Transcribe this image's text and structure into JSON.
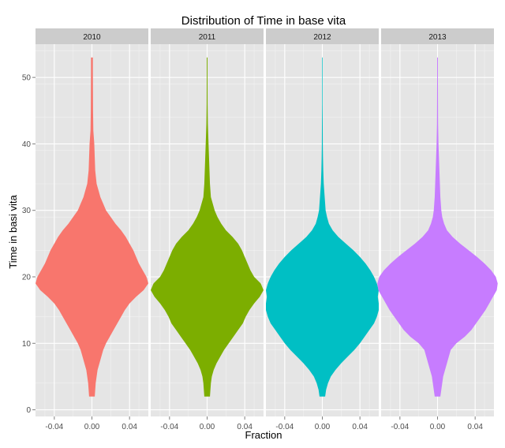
{
  "chart_data": {
    "type": "violin",
    "title": "Distribution of Time in base vita",
    "xlabel": "Fraction",
    "ylabel": "Time in basi vita",
    "ylim": [
      -1,
      55
    ],
    "xlim": [
      -0.06,
      0.06
    ],
    "y_ticks": [
      0,
      10,
      20,
      30,
      40,
      50
    ],
    "x_ticks": [
      -0.04,
      0.0,
      0.04
    ],
    "x_tick_labels": [
      "-0.04",
      "0.00",
      "0.04"
    ],
    "grid": true,
    "legend": "none",
    "panels": [
      {
        "name": "2010",
        "color": "#F8766D",
        "profile": [
          [
            2,
            0.003
          ],
          [
            3,
            0.0035
          ],
          [
            4,
            0.004
          ],
          [
            5,
            0.005
          ],
          [
            6,
            0.006
          ],
          [
            7,
            0.008
          ],
          [
            8,
            0.01
          ],
          [
            9,
            0.012
          ],
          [
            10,
            0.015
          ],
          [
            11,
            0.019
          ],
          [
            12,
            0.023
          ],
          [
            13,
            0.027
          ],
          [
            14,
            0.031
          ],
          [
            15,
            0.035
          ],
          [
            16,
            0.04
          ],
          [
            17,
            0.047
          ],
          [
            18,
            0.055
          ],
          [
            19,
            0.06
          ],
          [
            20,
            0.058
          ],
          [
            21,
            0.054
          ],
          [
            22,
            0.05
          ],
          [
            23,
            0.047
          ],
          [
            24,
            0.044
          ],
          [
            25,
            0.04
          ],
          [
            26,
            0.036
          ],
          [
            27,
            0.031
          ],
          [
            28,
            0.025
          ],
          [
            29,
            0.02
          ],
          [
            30,
            0.015
          ],
          [
            31,
            0.012
          ],
          [
            32,
            0.009
          ],
          [
            33,
            0.007
          ],
          [
            34,
            0.005
          ],
          [
            36,
            0.0035
          ],
          [
            38,
            0.003
          ],
          [
            40,
            0.0025
          ],
          [
            42,
            0.0015
          ],
          [
            45,
            0.0012
          ],
          [
            48,
            0.0011
          ],
          [
            51,
            0.001
          ],
          [
            53,
            0.001
          ]
        ]
      },
      {
        "name": "2011",
        "color": "#7CAE00",
        "profile": [
          [
            2,
            0.003
          ],
          [
            3,
            0.0035
          ],
          [
            4,
            0.004
          ],
          [
            5,
            0.005
          ],
          [
            6,
            0.007
          ],
          [
            7,
            0.01
          ],
          [
            8,
            0.014
          ],
          [
            9,
            0.018
          ],
          [
            10,
            0.023
          ],
          [
            11,
            0.028
          ],
          [
            12,
            0.033
          ],
          [
            13,
            0.038
          ],
          [
            14,
            0.041
          ],
          [
            15,
            0.045
          ],
          [
            16,
            0.05
          ],
          [
            17,
            0.056
          ],
          [
            18,
            0.06
          ],
          [
            19,
            0.057
          ],
          [
            20,
            0.05
          ],
          [
            21,
            0.046
          ],
          [
            22,
            0.043
          ],
          [
            23,
            0.04
          ],
          [
            24,
            0.037
          ],
          [
            25,
            0.033
          ],
          [
            26,
            0.027
          ],
          [
            27,
            0.02
          ],
          [
            28,
            0.015
          ],
          [
            29,
            0.011
          ],
          [
            30,
            0.008
          ],
          [
            31,
            0.006
          ],
          [
            32,
            0.004
          ],
          [
            34,
            0.003
          ],
          [
            36,
            0.0025
          ],
          [
            38,
            0.002
          ],
          [
            40,
            0.0015
          ],
          [
            43,
            0.0008
          ],
          [
            46,
            0.0005
          ],
          [
            50,
            0.0004
          ],
          [
            53,
            0.0004
          ]
        ]
      },
      {
        "name": "2012",
        "color": "#00BFC4",
        "profile": [
          [
            2,
            0.003
          ],
          [
            3,
            0.004
          ],
          [
            4,
            0.006
          ],
          [
            5,
            0.009
          ],
          [
            6,
            0.014
          ],
          [
            7,
            0.02
          ],
          [
            8,
            0.027
          ],
          [
            9,
            0.034
          ],
          [
            10,
            0.04
          ],
          [
            11,
            0.045
          ],
          [
            12,
            0.05
          ],
          [
            13,
            0.055
          ],
          [
            14,
            0.058
          ],
          [
            15,
            0.06
          ],
          [
            16,
            0.06
          ],
          [
            17,
            0.059
          ],
          [
            18,
            0.06
          ],
          [
            19,
            0.058
          ],
          [
            20,
            0.055
          ],
          [
            21,
            0.051
          ],
          [
            22,
            0.046
          ],
          [
            23,
            0.04
          ],
          [
            24,
            0.033
          ],
          [
            25,
            0.025
          ],
          [
            26,
            0.017
          ],
          [
            27,
            0.011
          ],
          [
            28,
            0.007
          ],
          [
            29,
            0.005
          ],
          [
            30,
            0.0035
          ],
          [
            32,
            0.0025
          ],
          [
            34,
            0.0015
          ],
          [
            36,
            0.001
          ],
          [
            38,
            0.0007
          ],
          [
            40,
            0.0005
          ],
          [
            43,
            0.0004
          ],
          [
            46,
            0.0003
          ],
          [
            50,
            0.0003
          ],
          [
            53,
            0.0003
          ]
        ]
      },
      {
        "name": "2013",
        "color": "#C77CFF",
        "profile": [
          [
            2,
            0.003
          ],
          [
            3,
            0.004
          ],
          [
            4,
            0.005
          ],
          [
            5,
            0.006
          ],
          [
            6,
            0.008
          ],
          [
            7,
            0.01
          ],
          [
            8,
            0.012
          ],
          [
            9,
            0.014
          ],
          [
            10,
            0.02
          ],
          [
            11,
            0.029
          ],
          [
            12,
            0.036
          ],
          [
            13,
            0.041
          ],
          [
            14,
            0.046
          ],
          [
            15,
            0.051
          ],
          [
            16,
            0.055
          ],
          [
            17,
            0.059
          ],
          [
            18,
            0.063
          ],
          [
            19,
            0.064
          ],
          [
            20,
            0.062
          ],
          [
            21,
            0.057
          ],
          [
            22,
            0.05
          ],
          [
            23,
            0.042
          ],
          [
            24,
            0.033
          ],
          [
            25,
            0.024
          ],
          [
            26,
            0.016
          ],
          [
            27,
            0.01
          ],
          [
            28,
            0.007
          ],
          [
            29,
            0.005
          ],
          [
            30,
            0.004
          ],
          [
            32,
            0.003
          ],
          [
            34,
            0.0025
          ],
          [
            36,
            0.002
          ],
          [
            38,
            0.0015
          ],
          [
            40,
            0.001
          ],
          [
            43,
            0.0006
          ],
          [
            46,
            0.0005
          ],
          [
            50,
            0.0004
          ],
          [
            53,
            0.0004
          ]
        ]
      }
    ]
  }
}
